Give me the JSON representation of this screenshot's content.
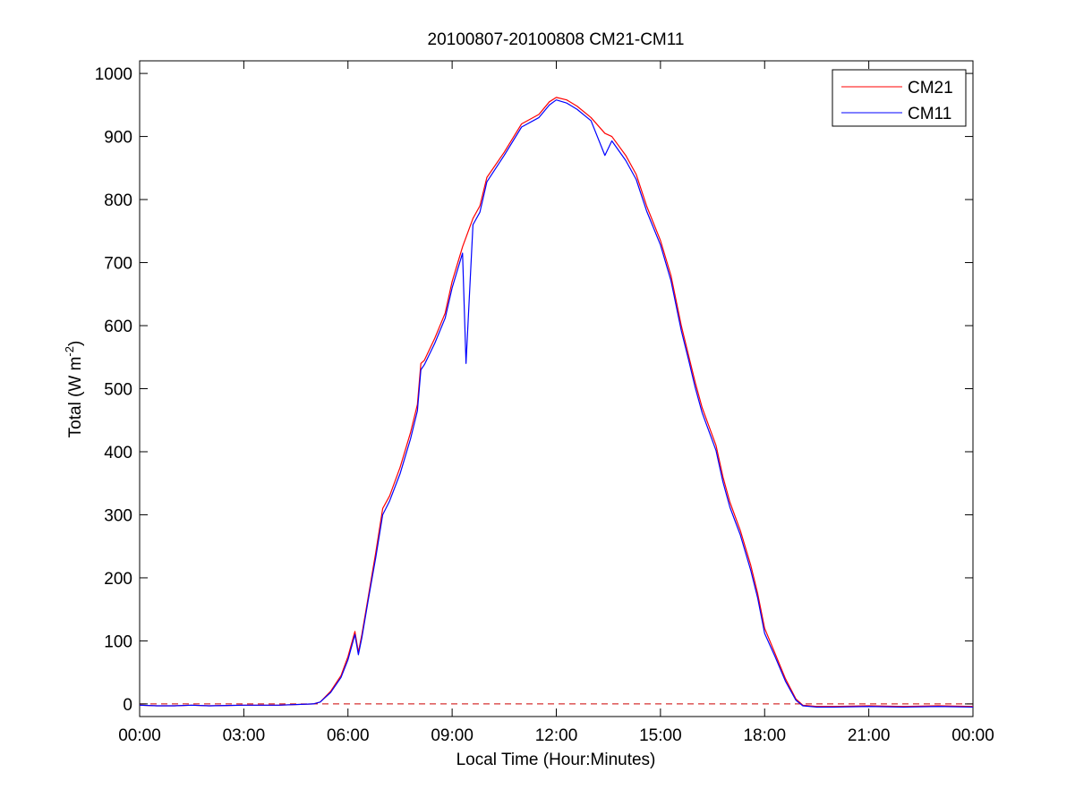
{
  "chart_data": {
    "type": "line",
    "title": "20100807-20100808 CM21-CM11",
    "xlabel": "Local Time (Hour:Minutes)",
    "ylabel_main": "Total (W m",
    "ylabel_sup": "-2",
    "ylabel_close": ")",
    "xlim": [
      0,
      24
    ],
    "ylim": [
      -20,
      1020
    ],
    "x_ticks": [
      0,
      3,
      6,
      9,
      12,
      15,
      18,
      21,
      24
    ],
    "x_tick_labels": [
      "00:00",
      "03:00",
      "06:00",
      "09:00",
      "12:00",
      "15:00",
      "18:00",
      "21:00",
      "00:00"
    ],
    "y_ticks": [
      0,
      100,
      200,
      300,
      400,
      500,
      600,
      700,
      800,
      900,
      1000
    ],
    "y_tick_labels": [
      "0",
      "100",
      "200",
      "300",
      "400",
      "500",
      "600",
      "700",
      "800",
      "900",
      "1000"
    ],
    "grid": false,
    "legend_position": "top-right",
    "zero_line": {
      "y": 0,
      "style": "dashed",
      "color": "#cc0000"
    },
    "series": [
      {
        "name": "CM21",
        "color": "#ff0000",
        "x": [
          0,
          0.5,
          1,
          1.5,
          2,
          3,
          4,
          5,
          5.2,
          5.5,
          5.8,
          6.0,
          6.2,
          6.3,
          6.4,
          6.6,
          6.8,
          7.0,
          7.2,
          7.5,
          7.8,
          8.0,
          8.1,
          8.2,
          8.5,
          8.8,
          9.0,
          9.3,
          9.6,
          9.8,
          10.0,
          10.5,
          11.0,
          11.5,
          11.8,
          12.0,
          12.3,
          12.6,
          13.0,
          13.4,
          13.6,
          14.0,
          14.3,
          14.6,
          15.0,
          15.3,
          15.6,
          15.8,
          16.0,
          16.2,
          16.4,
          16.6,
          16.8,
          17.0,
          17.3,
          17.6,
          17.8,
          18.0,
          18.3,
          18.6,
          18.9,
          19.1,
          19.5,
          20,
          21,
          22,
          23,
          24
        ],
        "y": [
          -2,
          -3,
          -3,
          -2,
          -3,
          -2,
          -2,
          0,
          3,
          20,
          45,
          75,
          115,
          82,
          110,
          175,
          240,
          310,
          330,
          375,
          430,
          475,
          540,
          545,
          580,
          620,
          670,
          725,
          770,
          790,
          835,
          875,
          920,
          935,
          955,
          962,
          958,
          948,
          930,
          905,
          900,
          870,
          840,
          790,
          735,
          680,
          600,
          555,
          510,
          470,
          440,
          410,
          360,
          320,
          275,
          220,
          175,
          120,
          80,
          40,
          8,
          -2,
          -4,
          -4,
          -3,
          -4,
          -3,
          -4
        ]
      },
      {
        "name": "CM11",
        "color": "#0000ff",
        "x": [
          0,
          0.5,
          1,
          1.5,
          2,
          3,
          4,
          5,
          5.2,
          5.5,
          5.8,
          6.0,
          6.2,
          6.3,
          6.4,
          6.6,
          6.8,
          7.0,
          7.2,
          7.5,
          7.8,
          8.0,
          8.1,
          8.2,
          8.5,
          8.8,
          9.0,
          9.3,
          9.4,
          9.6,
          9.8,
          10.0,
          10.5,
          11.0,
          11.5,
          11.8,
          12.0,
          12.3,
          12.6,
          13.0,
          13.4,
          13.6,
          14.0,
          14.3,
          14.6,
          15.0,
          15.3,
          15.6,
          15.8,
          16.0,
          16.2,
          16.4,
          16.6,
          16.8,
          17.0,
          17.3,
          17.6,
          17.8,
          18.0,
          18.3,
          18.6,
          18.9,
          19.1,
          19.5,
          20,
          21,
          22,
          23,
          24
        ],
        "y": [
          -2,
          -3,
          -3,
          -2,
          -3,
          -2,
          -2,
          0,
          3,
          18,
          42,
          70,
          110,
          78,
          105,
          170,
          232,
          300,
          322,
          365,
          420,
          465,
          530,
          538,
          572,
          612,
          660,
          715,
          540,
          760,
          780,
          828,
          870,
          915,
          930,
          950,
          958,
          953,
          943,
          925,
          870,
          893,
          862,
          832,
          782,
          728,
          672,
          592,
          548,
          502,
          462,
          432,
          402,
          352,
          312,
          268,
          212,
          168,
          112,
          75,
          36,
          6,
          -3,
          -5,
          -5,
          -4,
          -5,
          -4,
          -5
        ]
      }
    ]
  }
}
